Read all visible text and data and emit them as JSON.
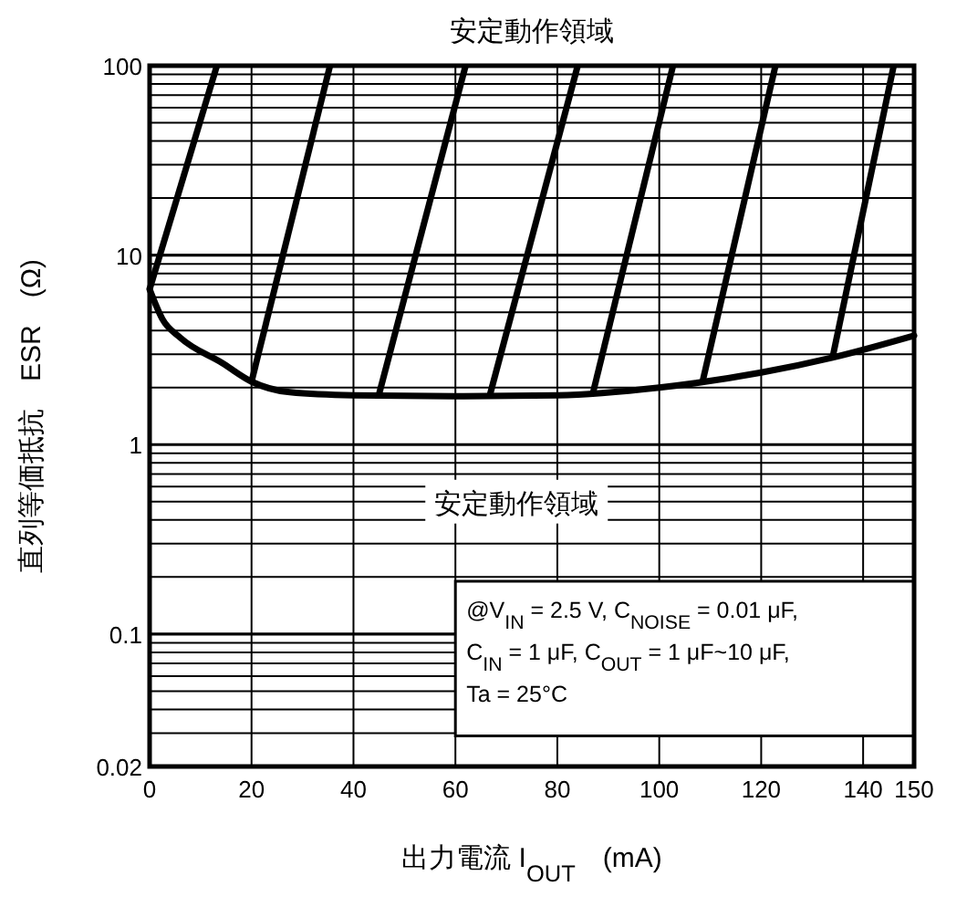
{
  "chart_data": {
    "type": "line",
    "title": "安定動作領域",
    "xlabel": "出力電流 I$_{OUT}$　(mA)",
    "ylabel": "直列等価抵抗　ESR　(Ω)",
    "annotations": [
      "安定動作領域",
      "@V$_{IN}$ = 2.5 V, C$_{NOISE}$ = 0.01 μF,",
      "C$_{IN}$ = 1 μF, C$_{OUT}$ = 1 μF~10 μF,",
      "Ta = 25°C"
    ],
    "x": [
      0,
      2.5,
      6,
      14.3,
      20,
      27.5,
      40,
      60,
      80,
      100,
      120,
      134,
      150
    ],
    "series": [
      {
        "color": "#000000",
        "values": [
          6.6,
          4.6,
          3.67,
          2.69,
          2.15,
          1.89,
          1.82,
          1.8,
          1.82,
          2.0,
          2.4,
          2.88,
          3.76
        ]
      }
    ],
    "xlim": [
      0,
      150
    ],
    "xticks": [
      0,
      20,
      40,
      60,
      80,
      100,
      120,
      140,
      150
    ],
    "ylim": [
      0.02,
      100
    ],
    "log": "y",
    "yticks": [
      {
        "value": 0.02,
        "label": "0.02"
      },
      {
        "value": 0.03,
        "label": null
      },
      {
        "value": 0.04,
        "label": null
      },
      {
        "value": 0.05,
        "label": null
      },
      {
        "value": 0.06,
        "label": null
      },
      {
        "value": 0.07,
        "label": null
      },
      {
        "value": 0.08,
        "label": null
      },
      {
        "value": 0.09,
        "label": null
      },
      0.1,
      {
        "value": 0.2,
        "label": null
      },
      {
        "value": 0.3,
        "label": null
      },
      {
        "value": 0.4,
        "label": null
      },
      {
        "value": 0.5,
        "label": null
      },
      {
        "value": 0.6,
        "label": null
      },
      {
        "value": 0.7,
        "label": null
      },
      {
        "value": 0.8,
        "label": null
      },
      {
        "value": 0.9,
        "label": null
      },
      1,
      {
        "value": 2,
        "label": null
      },
      {
        "value": 3,
        "label": null
      },
      {
        "value": 4,
        "label": null
      },
      {
        "value": 5,
        "label": null
      },
      {
        "value": 6,
        "label": null
      },
      {
        "value": 7,
        "label": null
      },
      {
        "value": 8,
        "label": null
      },
      {
        "value": 9,
        "label": null
      },
      10,
      {
        "value": 20,
        "label": null
      },
      {
        "value": 30,
        "label": null
      },
      {
        "value": 40,
        "label": null
      },
      {
        "value": 50,
        "label": null
      },
      {
        "value": 60,
        "label": null
      },
      {
        "value": 70,
        "label": null
      },
      {
        "value": 80,
        "label": null
      },
      {
        "value": 90,
        "label": null
      },
      100
    ],
    "grid": true,
    "line_style": "solid",
    "marker": "none"
  }
}
